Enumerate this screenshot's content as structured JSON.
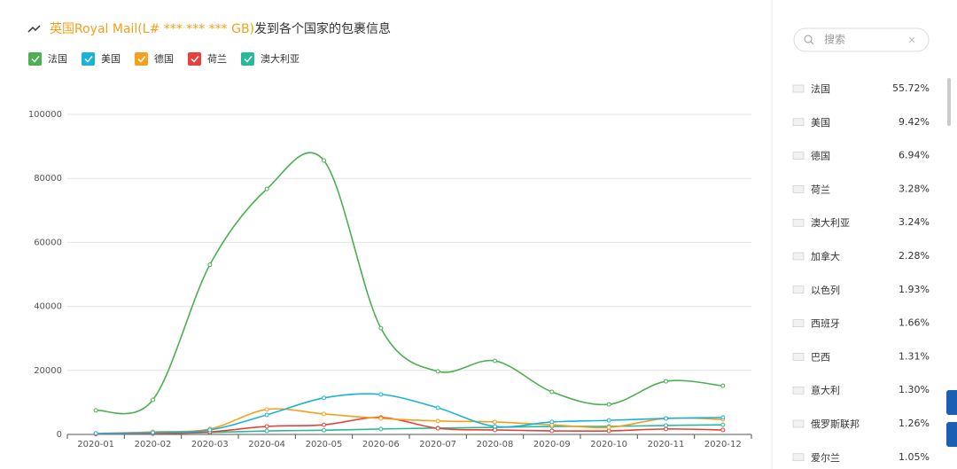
{
  "chart_data": {
    "type": "line",
    "title": {
      "highlight": "英国Royal Mail(L# *** *** *** GB)",
      "rest": "发到各个国家的包裹信息"
    },
    "categories": [
      "2020-01",
      "2020-02",
      "2020-03",
      "2020-04",
      "2020-05",
      "2020-06",
      "2020-07",
      "2020-08",
      "2020-09",
      "2020-10",
      "2020-11",
      "2020-12"
    ],
    "series": [
      {
        "name": "法国",
        "color": "#4caf50",
        "values": [
          7500,
          10800,
          53000,
          76700,
          85600,
          33200,
          19700,
          23000,
          13300,
          9400,
          16600,
          15200
        ]
      },
      {
        "name": "美国",
        "color": "#1ab3d8",
        "values": [
          300,
          600,
          1400,
          6100,
          11400,
          12500,
          8300,
          2500,
          3900,
          4400,
          5000,
          5300
        ]
      },
      {
        "name": "德国",
        "color": "#f5a01a",
        "values": [
          300,
          800,
          1700,
          7800,
          6400,
          5000,
          4200,
          3900,
          3000,
          2200,
          5000,
          4700
        ]
      },
      {
        "name": "荷兰",
        "color": "#e8403a",
        "values": [
          100,
          300,
          800,
          2500,
          3000,
          5300,
          1900,
          1400,
          1100,
          1100,
          1700,
          1400
        ]
      },
      {
        "name": "澳大利亚",
        "color": "#26b99a",
        "values": [
          100,
          200,
          600,
          1100,
          1300,
          1700,
          2000,
          2200,
          2500,
          2500,
          2800,
          3000
        ]
      }
    ],
    "ylim": [
      0,
      100000
    ],
    "yticks": [
      0,
      20000,
      40000,
      60000,
      80000,
      100000
    ],
    "grid": true,
    "smooth": true
  },
  "sidebar": {
    "search_placeholder": "搜索",
    "items": [
      {
        "country": "法国",
        "share": "55.72%"
      },
      {
        "country": "美国",
        "share": "9.42%"
      },
      {
        "country": "德国",
        "share": "6.94%"
      },
      {
        "country": "荷兰",
        "share": "3.28%"
      },
      {
        "country": "澳大利亚",
        "share": "3.24%"
      },
      {
        "country": "加拿大",
        "share": "2.28%"
      },
      {
        "country": "以色列",
        "share": "1.93%"
      },
      {
        "country": "西班牙",
        "share": "1.66%"
      },
      {
        "country": "巴西",
        "share": "1.31%"
      },
      {
        "country": "意大利",
        "share": "1.30%"
      },
      {
        "country": "俄罗斯联邦",
        "share": "1.26%"
      },
      {
        "country": "爱尔兰",
        "share": "1.05%"
      }
    ]
  }
}
